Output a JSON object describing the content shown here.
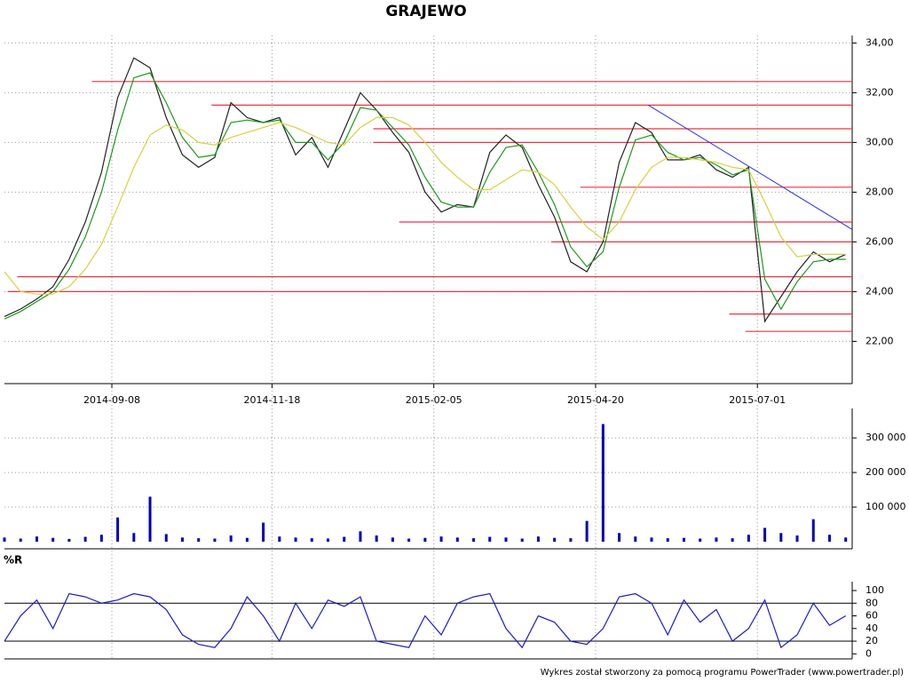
{
  "title": "GRAJEWO",
  "footer": "Wykres został stworzony za pomocą programu PowerTrader (www.powertrader.pl)",
  "chart_data": [
    {
      "type": "line",
      "xlim": [
        0,
        262
      ],
      "ylim": [
        20.3,
        34.3
      ],
      "x": [
        0,
        5,
        10,
        15,
        20,
        25,
        30,
        35,
        40,
        45,
        50,
        55,
        60,
        65,
        70,
        75,
        80,
        85,
        90,
        95,
        100,
        105,
        110,
        115,
        120,
        125,
        130,
        135,
        140,
        145,
        150,
        155,
        160,
        165,
        170,
        175,
        180,
        185,
        190,
        195,
        200,
        205,
        210,
        215,
        220,
        225,
        230,
        235,
        240,
        245,
        250,
        255,
        260
      ],
      "xticks": [
        {
          "value": 33.2,
          "label": "2014-09-08"
        },
        {
          "value": 82.7,
          "label": "2014-11-18"
        },
        {
          "value": 132.7,
          "label": "2015-02-05"
        },
        {
          "value": 182.7,
          "label": "2015-04-20"
        },
        {
          "value": 232.7,
          "label": "2015-07-01"
        }
      ],
      "yticks": [
        {
          "value": 22,
          "label": "22,00"
        },
        {
          "value": 24,
          "label": "24,00"
        },
        {
          "value": 26,
          "label": "26,00"
        },
        {
          "value": 28,
          "label": "28,00"
        },
        {
          "value": 30,
          "label": "30,00"
        },
        {
          "value": 32,
          "label": "32,00"
        },
        {
          "value": 34,
          "label": "34,00"
        }
      ],
      "grid": true,
      "series": [
        {
          "color": "#222222",
          "values": [
            23.0,
            23.3,
            23.7,
            24.2,
            25.3,
            26.8,
            28.8,
            31.8,
            33.4,
            33.0,
            31.0,
            29.5,
            29.0,
            29.4,
            31.6,
            31.0,
            30.8,
            31.0,
            29.5,
            30.2,
            29.0,
            30.5,
            32.0,
            31.3,
            30.4,
            29.6,
            28.0,
            27.2,
            27.5,
            27.4,
            29.6,
            30.3,
            29.8,
            28.3,
            27.0,
            25.2,
            24.8,
            26.0,
            29.2,
            30.8,
            30.4,
            29.3,
            29.3,
            29.5,
            28.9,
            28.6,
            29.0,
            22.8,
            23.8,
            24.8,
            25.6,
            25.2,
            25.5
          ]
        },
        {
          "color": "#1a9a1a",
          "values": [
            22.9,
            23.2,
            23.6,
            24.0,
            24.9,
            26.2,
            28.0,
            30.5,
            32.6,
            32.8,
            31.6,
            30.2,
            29.4,
            29.5,
            30.8,
            30.9,
            30.8,
            30.9,
            30.0,
            30.0,
            29.3,
            30.0,
            31.4,
            31.3,
            30.6,
            29.9,
            28.6,
            27.6,
            27.4,
            27.4,
            28.8,
            29.8,
            29.9,
            28.8,
            27.5,
            25.8,
            25.0,
            25.6,
            28.2,
            30.1,
            30.3,
            29.6,
            29.3,
            29.4,
            29.1,
            28.7,
            28.9,
            24.5,
            23.3,
            24.4,
            25.2,
            25.3,
            25.3
          ]
        },
        {
          "color": "#d8d040",
          "values": [
            24.8,
            24.0,
            23.9,
            23.9,
            24.2,
            24.9,
            25.9,
            27.4,
            29.0,
            30.3,
            30.7,
            30.5,
            30.0,
            29.9,
            30.2,
            30.4,
            30.6,
            30.8,
            30.6,
            30.3,
            30.0,
            29.9,
            30.6,
            31.0,
            31.0,
            30.7,
            30.0,
            29.2,
            28.6,
            28.1,
            28.1,
            28.5,
            28.9,
            28.8,
            28.3,
            27.4,
            26.6,
            26.1,
            26.8,
            28.1,
            29.0,
            29.4,
            29.4,
            29.3,
            29.2,
            29.0,
            28.9,
            27.6,
            26.2,
            25.4,
            25.5,
            25.5,
            25.5
          ]
        }
      ],
      "levels_color": "#ee3344",
      "levels": [
        {
          "y": 32.45,
          "x": [
            27,
            262
          ]
        },
        {
          "y": 31.5,
          "x": [
            64,
            262
          ]
        },
        {
          "y": 30.55,
          "x": [
            114,
            262
          ]
        },
        {
          "y": 30.0,
          "x": [
            114,
            262
          ]
        },
        {
          "y": 28.2,
          "x": [
            178,
            262
          ]
        },
        {
          "y": 26.8,
          "x": [
            122,
            262
          ]
        },
        {
          "y": 26.0,
          "x": [
            169,
            262
          ]
        },
        {
          "y": 24.6,
          "x": [
            4,
            262
          ]
        },
        {
          "y": 24.0,
          "x": [
            1,
            262
          ]
        },
        {
          "y": 23.1,
          "x": [
            224,
            262
          ]
        },
        {
          "y": 22.4,
          "x": [
            229,
            262
          ]
        }
      ],
      "trend_color": "#2233dd",
      "trend": {
        "x": [
          199,
          262
        ],
        "y": [
          31.5,
          26.5
        ]
      }
    },
    {
      "type": "bar",
      "color": "#0000bb",
      "ylim": [
        0,
        385000
      ],
      "yticks": [
        {
          "value": 100000,
          "label": "100 000"
        },
        {
          "value": 200000,
          "label": "200 000"
        },
        {
          "value": 300000,
          "label": "300 000"
        }
      ],
      "values": [
        12000,
        9000,
        15000,
        11000,
        8000,
        14000,
        20000,
        70000,
        25000,
        130000,
        22000,
        12000,
        10000,
        9000,
        18000,
        11000,
        55000,
        15000,
        12000,
        10000,
        9000,
        14000,
        30000,
        18000,
        12000,
        9000,
        11000,
        15000,
        12000,
        10000,
        14000,
        12000,
        9000,
        15000,
        11000,
        10000,
        60000,
        340000,
        25000,
        15000,
        12000,
        10000,
        11000,
        9000,
        12000,
        10000,
        20000,
        40000,
        25000,
        18000,
        65000,
        20000,
        12000
      ]
    },
    {
      "type": "line",
      "color": "#1a1acc",
      "label": "%R",
      "ylim": [
        -8,
        107
      ],
      "yticks": [
        0,
        20,
        40,
        60,
        80,
        100
      ],
      "ref_lines": [
        20,
        80
      ],
      "values": [
        20,
        60,
        85,
        40,
        95,
        90,
        80,
        85,
        95,
        90,
        70,
        30,
        15,
        10,
        40,
        90,
        60,
        20,
        80,
        40,
        85,
        75,
        90,
        20,
        15,
        10,
        60,
        30,
        80,
        90,
        95,
        40,
        10,
        60,
        50,
        20,
        15,
        40,
        90,
        95,
        80,
        30,
        85,
        50,
        70,
        20,
        40,
        85,
        10,
        30,
        80,
        45,
        60
      ]
    }
  ]
}
